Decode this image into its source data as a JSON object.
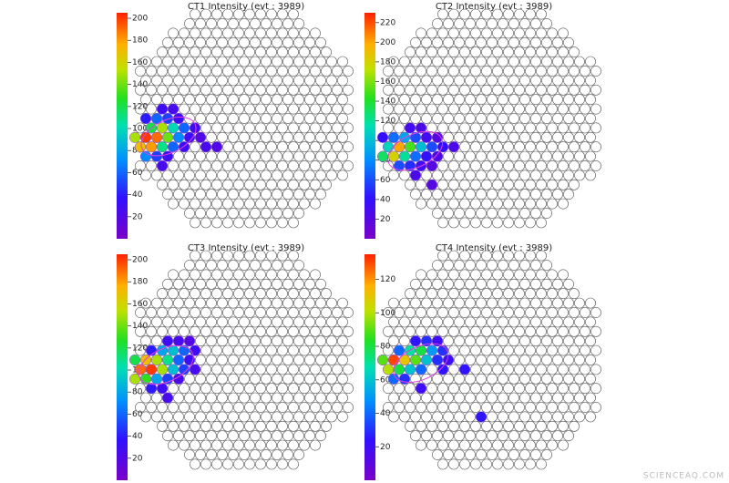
{
  "chart_data": [
    {
      "type": "hexmap",
      "title": "CT1 Intensity (evt : 3989)",
      "zlim": [
        0,
        205
      ],
      "zticks": [
        20,
        40,
        60,
        80,
        100,
        120,
        140,
        160,
        180,
        200
      ],
      "pixels": {
        "col": [
          -8,
          -7,
          -9,
          -8,
          -7,
          -6,
          -9,
          -8,
          -7,
          -6,
          -5,
          -10,
          -9,
          -8,
          -7,
          -6,
          -5,
          -4,
          -10,
          -9,
          -8,
          -7,
          -6,
          -4,
          -3,
          -9,
          -8,
          -7,
          -8
        ],
        "row": [
          -1,
          -1,
          0,
          0,
          0,
          0,
          1,
          1,
          1,
          1,
          1,
          2,
          2,
          2,
          2,
          2,
          2,
          2,
          3,
          3,
          3,
          3,
          3,
          3,
          3,
          4,
          4,
          4,
          5
        ],
        "values": [
          30,
          25,
          40,
          60,
          50,
          30,
          120,
          150,
          100,
          60,
          30,
          150,
          200,
          190,
          140,
          70,
          30,
          20,
          170,
          180,
          110,
          60,
          30,
          25,
          20,
          70,
          50,
          30,
          25
        ]
      }
    },
    {
      "type": "hexmap",
      "title": "CT2 Intensity (evt : 3989)",
      "zlim": [
        0,
        230
      ],
      "zticks": [
        20,
        40,
        60,
        80,
        100,
        120,
        140,
        160,
        180,
        200,
        220
      ],
      "pixels": {
        "col": [
          -8,
          -7,
          -10,
          -9,
          -8,
          -7,
          -6,
          -5,
          -10,
          -9,
          -8,
          -7,
          -6,
          -5,
          -4,
          -10,
          -9,
          -8,
          -7,
          -6,
          -5,
          -9,
          -8,
          -7,
          -6,
          -7,
          -6
        ],
        "row": [
          1,
          1,
          2,
          2,
          2,
          2,
          2,
          2,
          3,
          3,
          3,
          3,
          3,
          3,
          3,
          4,
          4,
          4,
          4,
          4,
          4,
          5,
          5,
          5,
          5,
          6,
          7
        ],
        "values": [
          30,
          25,
          40,
          70,
          90,
          60,
          30,
          20,
          110,
          200,
          150,
          100,
          60,
          40,
          25,
          130,
          180,
          120,
          70,
          40,
          25,
          60,
          50,
          30,
          20,
          25,
          20
        ]
      }
    },
    {
      "type": "hexmap",
      "title": "CT3 Intensity (evt : 3989)",
      "zlim": [
        0,
        205
      ],
      "zticks": [
        20,
        40,
        60,
        80,
        100,
        120,
        140,
        160,
        180,
        200
      ],
      "pixels": {
        "col": [
          -7,
          -6,
          -5,
          -9,
          -8,
          -7,
          -6,
          -5,
          -10,
          -9,
          -8,
          -7,
          -6,
          -5,
          -10,
          -9,
          -8,
          -7,
          -6,
          -5,
          -10,
          -9,
          -8,
          -7,
          -6,
          -9,
          -8,
          -7
        ],
        "row": [
          -2,
          -2,
          -2,
          -1,
          -1,
          -1,
          -1,
          -1,
          0,
          0,
          0,
          0,
          0,
          0,
          1,
          1,
          1,
          1,
          1,
          1,
          2,
          2,
          2,
          2,
          2,
          3,
          3,
          4
        ],
        "values": [
          30,
          25,
          20,
          40,
          80,
          90,
          60,
          30,
          120,
          170,
          150,
          110,
          60,
          30,
          190,
          200,
          150,
          90,
          50,
          25,
          150,
          130,
          80,
          50,
          25,
          40,
          30,
          25
        ]
      }
    },
    {
      "type": "hexmap",
      "title": "CT4 Intensity (evt : 3989)",
      "zlim": [
        0,
        135
      ],
      "zticks": [
        20,
        40,
        60,
        80,
        100,
        120
      ],
      "pixels": {
        "col": [
          -7,
          -6,
          -5,
          -9,
          -8,
          -7,
          -6,
          -5,
          -10,
          -9,
          -8,
          -7,
          -6,
          -5,
          -4,
          -10,
          -9,
          -8,
          -7,
          -5,
          -3,
          -9,
          -8,
          -7,
          -1
        ],
        "row": [
          -2,
          -2,
          -2,
          -1,
          -1,
          -1,
          -1,
          -1,
          0,
          0,
          0,
          0,
          0,
          0,
          0,
          1,
          1,
          1,
          1,
          1,
          1,
          2,
          2,
          3,
          6
        ],
        "values": [
          25,
          30,
          20,
          40,
          70,
          80,
          50,
          30,
          90,
          130,
          110,
          90,
          60,
          30,
          20,
          100,
          80,
          60,
          40,
          25,
          25,
          40,
          30,
          20,
          25
        ]
      }
    }
  ],
  "watermark": "SCIENCEAQ.COM"
}
